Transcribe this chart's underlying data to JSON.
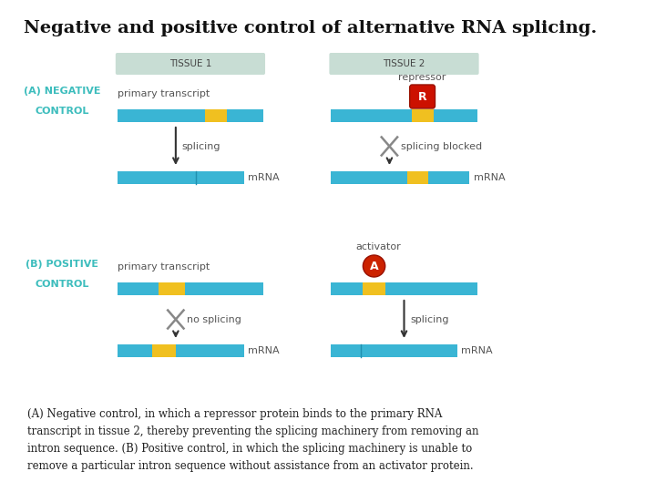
{
  "title": "Negative and positive control of alternative RNA splicing.",
  "title_fontsize": 14,
  "background_color": "#ffffff",
  "tissue1_label": "TISSUE 1",
  "tissue2_label": "TISSUE 2",
  "tissue_box_color": "#c8ddd4",
  "neg_label_1": "(A) NEGATIVE",
  "neg_label_2": "CONTROL",
  "pos_label_1": "(B) POSITIVE",
  "pos_label_2": "CONTROL",
  "control_color": "#3dbdbd",
  "primary_transcript_label": "primary transcript",
  "splicing_label": "splicing",
  "splicing_blocked_label": "splicing blocked",
  "no_splicing_label": "no splicing",
  "mrna_label": "mRNA",
  "repressor_label": "repressor",
  "activator_label": "activator",
  "bar_blue": "#3ab5d4",
  "bar_yellow": "#f0c020",
  "repressor_color": "#cc1100",
  "activator_color": "#cc2200",
  "label_color": "#555555",
  "arrow_color": "#333333",
  "cross_color": "#888888"
}
